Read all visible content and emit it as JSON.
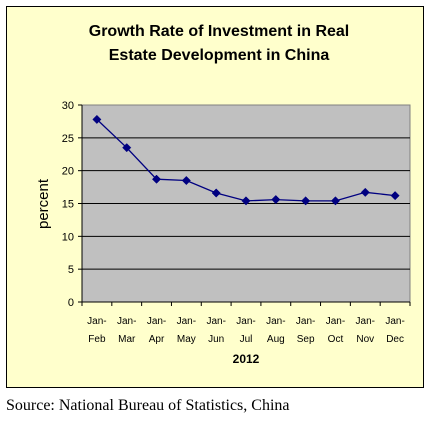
{
  "source_note": "Source: National Bureau of Statistics, China",
  "chart_data": {
    "type": "line",
    "title_lines": [
      "Growth Rate of Investment in Real",
      "Estate Development in China"
    ],
    "xlabel": "2012",
    "ylabel": "percent",
    "categories": [
      [
        "Jan-",
        "Feb"
      ],
      [
        "Jan-",
        "Mar"
      ],
      [
        "Jan-",
        "Apr"
      ],
      [
        "Jan-",
        "May"
      ],
      [
        "Jan-",
        "Jun"
      ],
      [
        "Jan-",
        "Jul"
      ],
      [
        "Jan-",
        "Aug"
      ],
      [
        "Jan-",
        "Sep"
      ],
      [
        "Jan-",
        "Oct"
      ],
      [
        "Jan-",
        "Nov"
      ],
      [
        "Jan-",
        "Dec"
      ]
    ],
    "values": [
      27.8,
      23.5,
      18.7,
      18.5,
      16.6,
      15.4,
      15.6,
      15.4,
      15.4,
      16.7,
      16.2
    ],
    "ylim": [
      0,
      30
    ],
    "yticks": [
      0,
      5,
      10,
      15,
      20,
      25,
      30
    ],
    "grid": "horizontal",
    "legend": "none",
    "colors": {
      "frame_bg": "#ffffcc",
      "plot_bg": "#c0c0c0",
      "line": "#000080",
      "marker": "#000080",
      "grid": "#000000"
    }
  }
}
